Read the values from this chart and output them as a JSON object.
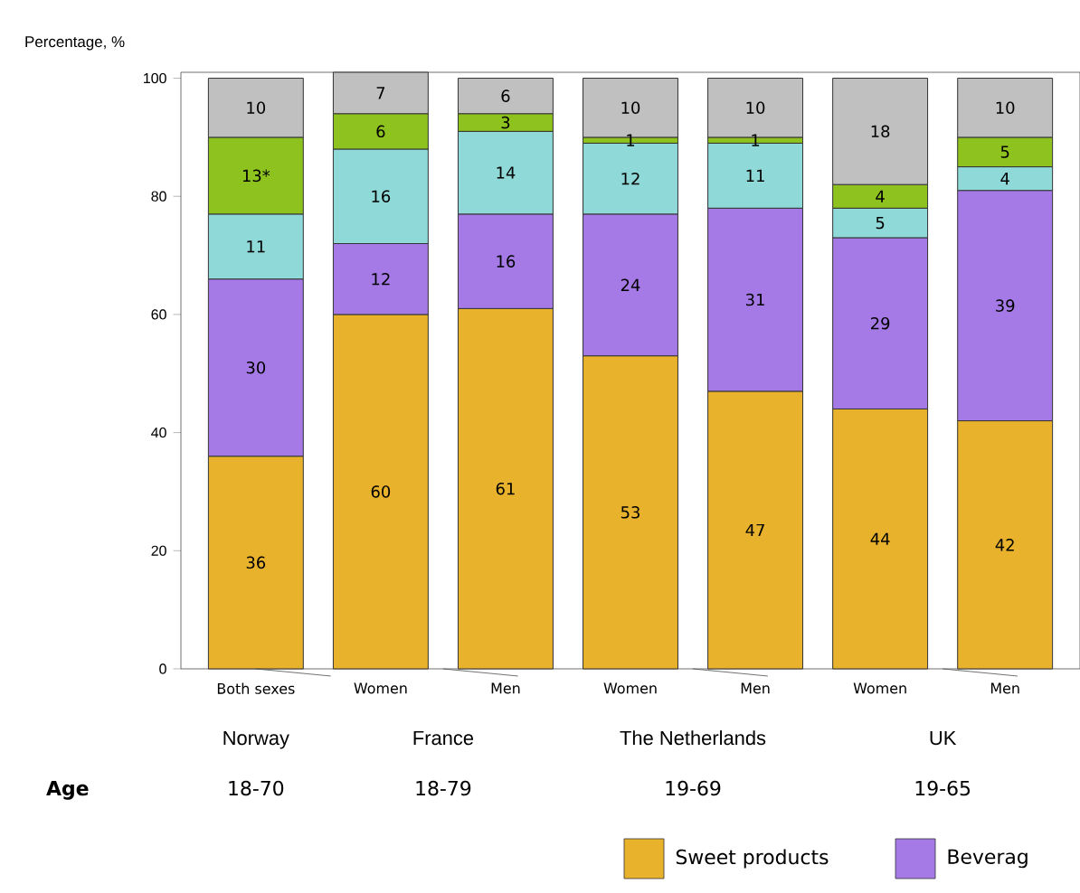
{
  "chart_data": {
    "type": "bar",
    "stacked": true,
    "ylabel": "Percentage, %",
    "categories": [
      "Both sexes",
      "Women",
      "Men",
      "Women",
      "Men",
      "Women",
      "Men"
    ],
    "series": [
      {
        "name": "Sweet products",
        "color": "#e8b22c",
        "values": [
          36,
          60,
          61,
          53,
          47,
          44,
          42
        ],
        "value_labels": [
          "36",
          "60",
          "61",
          "53",
          "47",
          "44",
          "42"
        ]
      },
      {
        "name": "Beverag",
        "color": "#a57ae6",
        "values": [
          30,
          12,
          16,
          24,
          31,
          29,
          39
        ],
        "value_labels": [
          "30",
          "12",
          "16",
          "24",
          "31",
          "29",
          "39"
        ]
      },
      {
        "color": "#8fd9d9",
        "values": [
          11,
          16,
          14,
          12,
          11,
          5,
          4
        ],
        "value_labels": [
          "11",
          "16",
          "14",
          "12",
          "11",
          "5",
          "4"
        ]
      },
      {
        "color": "#8dc21f",
        "values": [
          13,
          6,
          3,
          1,
          1,
          4,
          5
        ],
        "value_labels": [
          "13*",
          "6",
          "3",
          "1",
          "1",
          "4",
          "5"
        ]
      },
      {
        "color": "#c0c0c0",
        "values": [
          10,
          7,
          6,
          10,
          10,
          18,
          10
        ],
        "value_labels": [
          "10",
          "7",
          "6",
          "10",
          "10",
          "18",
          "10"
        ]
      }
    ],
    "ylim": [
      0,
      101
    ],
    "yticks": [
      0,
      20,
      40,
      60,
      80,
      100
    ],
    "annotations": [
      "Norway",
      "France",
      "The Netherlands",
      "UK",
      "Age",
      "18-70",
      "18-79",
      "19-69",
      "19-65"
    ],
    "legend": "bottom right",
    "grid": false
  }
}
